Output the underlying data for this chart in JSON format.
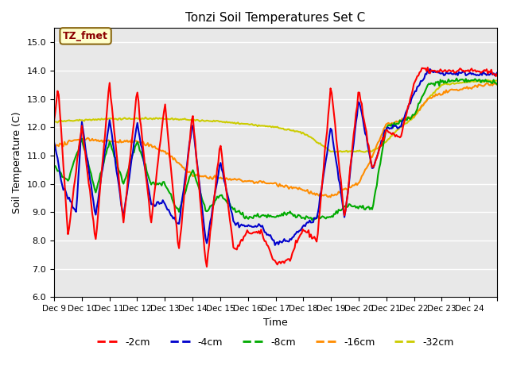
{
  "title": "Tonzi Soil Temperatures Set C",
  "xlabel": "Time",
  "ylabel": "Soil Temperature (C)",
  "ylim": [
    6.0,
    15.5
  ],
  "yticks": [
    6.0,
    7.0,
    8.0,
    9.0,
    10.0,
    11.0,
    12.0,
    13.0,
    14.0,
    15.0
  ],
  "xtick_labels": [
    "Dec 9",
    "Dec 10",
    "Dec 11",
    "Dec 12",
    "Dec 13",
    "Dec 14",
    "Dec 15",
    "Dec 16",
    "Dec 17",
    "Dec 18",
    "Dec 19",
    "Dec 20",
    "Dec 21",
    "Dec 22",
    "Dec 23",
    "Dec 24",
    ""
  ],
  "annotation_text": "TZ_fmet",
  "annotation_color": "#8B0000",
  "annotation_bg": "#FFFFCC",
  "annotation_border": "#8B6914",
  "colors": {
    "-2cm": "#FF0000",
    "-4cm": "#0000CC",
    "-8cm": "#00AA00",
    "-16cm": "#FF8C00",
    "-32cm": "#CCCC00"
  },
  "line_widths": {
    "-2cm": 1.5,
    "-4cm": 1.5,
    "-8cm": 1.5,
    "-16cm": 1.5,
    "-32cm": 1.5
  },
  "bg_color": "#E8E8E8",
  "grid_color": "#FFFFFF"
}
